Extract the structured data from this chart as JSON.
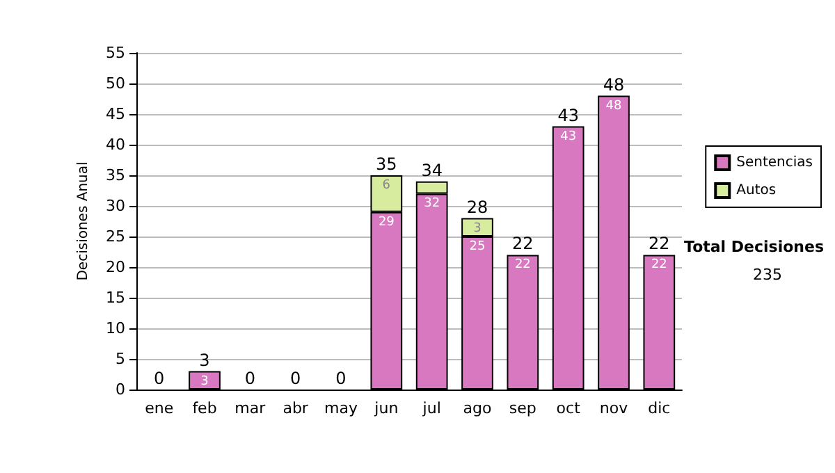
{
  "chart_data": {
    "type": "bar",
    "ylabel": "Decisiones Anual",
    "categories": [
      "ene",
      "feb",
      "mar",
      "abr",
      "may",
      "jun",
      "jul",
      "ago",
      "sep",
      "oct",
      "nov",
      "dic"
    ],
    "stacked": true,
    "series": [
      {
        "name": "Sentencias",
        "color": "#d878c0",
        "values": [
          0,
          3,
          0,
          0,
          0,
          29,
          32,
          25,
          22,
          43,
          48,
          22
        ],
        "value_labels": [
          null,
          "3",
          null,
          null,
          null,
          "29",
          "32",
          "25",
          "22",
          "43",
          "48",
          "22"
        ]
      },
      {
        "name": "Autos",
        "color": "#d8eca0",
        "values": [
          0,
          0,
          0,
          0,
          0,
          6,
          2,
          3,
          0,
          0,
          0,
          0
        ],
        "value_labels": [
          null,
          null,
          null,
          null,
          null,
          "6",
          null,
          "3",
          null,
          null,
          null,
          null
        ]
      }
    ],
    "totals": [
      "0",
      "3",
      "0",
      "0",
      "0",
      "35",
      "34",
      "28",
      "22",
      "43",
      "48",
      "22"
    ],
    "ylim": [
      0,
      55
    ],
    "yticks": [
      0,
      5,
      10,
      15,
      20,
      25,
      30,
      35,
      40,
      45,
      50,
      55
    ],
    "grid": "y",
    "legend": "right",
    "annotations": [
      "Total Decisiones",
      "235"
    ]
  }
}
